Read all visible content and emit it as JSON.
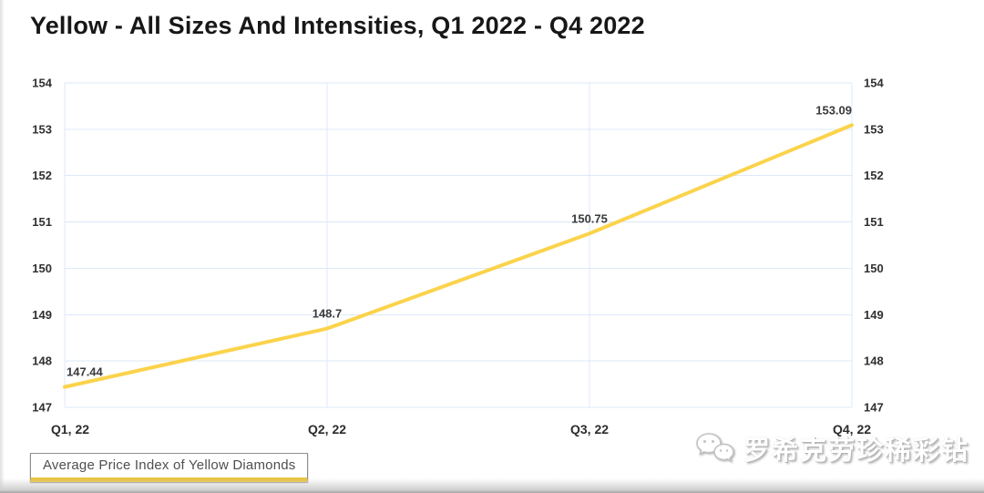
{
  "chart_data": {
    "type": "line",
    "title": "Yellow - All Sizes And Intensities, Q1 2022 - Q4 2022",
    "categories": [
      "Q1, 22",
      "Q2, 22",
      "Q3, 22",
      "Q4, 22"
    ],
    "series": [
      {
        "name": "Average Price Index of Yellow Diamonds",
        "values": [
          147.44,
          148.7,
          150.75,
          153.09
        ],
        "point_labels": [
          "147.44",
          "148.7",
          "150.75",
          "153.09"
        ],
        "color": "#FBD34B"
      }
    ],
    "xlabel": "",
    "ylabel": "",
    "ylim": [
      147,
      154
    ],
    "y_ticks": [
      154,
      153,
      152,
      151,
      150,
      149,
      148,
      147
    ],
    "y_axis_sides": "both",
    "grid": true,
    "grid_color": "#DDE8F8",
    "legend_position": "bottom-left"
  },
  "legend": {
    "label": "Average Price Index of Yellow Diamonds",
    "underline_color": "#E9C43C"
  },
  "watermark": {
    "text": "罗希克劳珍稀彩钻",
    "icon": "wechat-icon"
  }
}
